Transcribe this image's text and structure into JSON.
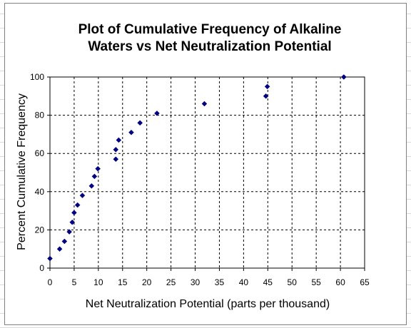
{
  "chart_data": {
    "type": "scatter",
    "title_lines": [
      "Plot of Cumulative Frequency of Alkaline",
      "Waters vs Net Neutralization Potential"
    ],
    "xlabel": "Net Neutralization Potential (parts per thousand)",
    "ylabel": "Percent Cumulative Frequency",
    "xlim": [
      0,
      65
    ],
    "ylim": [
      0,
      100
    ],
    "xticks": [
      0,
      5,
      10,
      15,
      20,
      25,
      30,
      35,
      40,
      45,
      50,
      55,
      60,
      65
    ],
    "yticks": [
      0,
      20,
      40,
      60,
      80,
      100
    ],
    "grid": true,
    "marker": "diamond",
    "marker_color": "#000080",
    "series": [
      {
        "points": [
          [
            0.0,
            5
          ],
          [
            2.0,
            10
          ],
          [
            3.0,
            14
          ],
          [
            4.0,
            19
          ],
          [
            4.6,
            24
          ],
          [
            5.0,
            29
          ],
          [
            5.7,
            33
          ],
          [
            6.7,
            38
          ],
          [
            8.6,
            43
          ],
          [
            9.2,
            48
          ],
          [
            9.9,
            52
          ],
          [
            13.6,
            57
          ],
          [
            13.6,
            62
          ],
          [
            14.2,
            67
          ],
          [
            16.8,
            71
          ],
          [
            18.6,
            76
          ],
          [
            22.1,
            81
          ],
          [
            31.9,
            86
          ],
          [
            44.6,
            90
          ],
          [
            44.9,
            95
          ],
          [
            60.7,
            100
          ]
        ]
      }
    ]
  }
}
